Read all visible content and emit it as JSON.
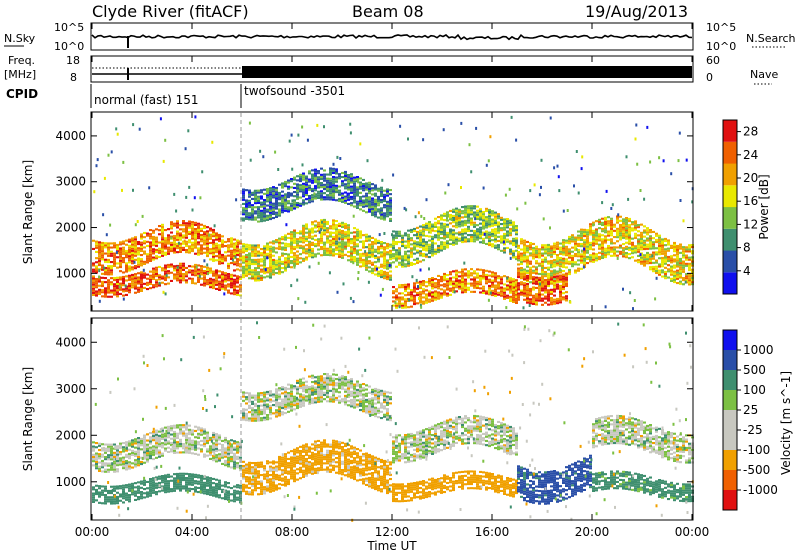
{
  "header": {
    "station": "Clyde River (fitACF)",
    "beam": "Beam 08",
    "date": "19/Aug/2013"
  },
  "noise_panel": {
    "left_label": "N.Sky",
    "right_label": "N.Search",
    "tick_top": "10^5",
    "tick_bottom": "10^0"
  },
  "freq_panel": {
    "left_label_1": "Freq.",
    "left_label_2": "[MHz]",
    "right_label": "Nave",
    "freq_ticks": [
      "18",
      "8"
    ],
    "nave_ticks": [
      "60",
      "0"
    ]
  },
  "cpid": {
    "label": "CPID",
    "segments": [
      {
        "name": "normal (fast) 151",
        "start_hour": 0,
        "end_hour": 6
      },
      {
        "name": "twofsound -3501",
        "start_hour": 6,
        "end_hour": 24
      }
    ]
  },
  "x_axis": {
    "ticks": [
      "00:00",
      "04:00",
      "08:00",
      "12:00",
      "16:00",
      "20:00",
      "00:00"
    ],
    "label": "Time UT"
  },
  "colors": {
    "power": [
      "#1010ee",
      "#2a4fa8",
      "#3f8f6f",
      "#7cc043",
      "#e8e800",
      "#f0a000",
      "#f06000",
      "#e01010"
    ],
    "velocity": [
      "#e01010",
      "#f06000",
      "#f0a000",
      "#c8c8c0",
      "#c8c8c0",
      "#7cc043",
      "#3f8f6f",
      "#2a4fa8",
      "#1010ee"
    ]
  },
  "chart_data": [
    {
      "type": "heatmap",
      "quantity": "power",
      "ylabel": "Slant Range [km]",
      "y_ticks": [
        "1000",
        "2000",
        "3000",
        "4000"
      ],
      "ylim": [
        200,
        4500
      ],
      "xlim_hours": [
        0,
        24
      ],
      "colorbar_label": "Power [dB]",
      "colorbar_ticks": [
        "4",
        "8",
        "12",
        "16",
        "20",
        "24",
        "28"
      ],
      "colorbar_range": [
        0,
        30
      ],
      "bands": [
        {
          "start_hour": 0,
          "end_hour": 6,
          "center_km": 1550,
          "width_km": 700,
          "level_db": 22
        },
        {
          "start_hour": 0,
          "end_hour": 6,
          "center_km": 850,
          "width_km": 450,
          "level_db": 24
        },
        {
          "start_hour": 6,
          "end_hour": 12,
          "center_km": 1500,
          "width_km": 800,
          "level_db": 17
        },
        {
          "start_hour": 6,
          "end_hour": 12,
          "center_km": 2700,
          "width_km": 700,
          "level_db": 8
        },
        {
          "start_hour": 12,
          "end_hour": 17,
          "center_km": 1800,
          "width_km": 800,
          "level_db": 14
        },
        {
          "start_hour": 12,
          "end_hour": 17,
          "center_km": 650,
          "width_km": 500,
          "level_db": 22
        },
        {
          "start_hour": 17,
          "end_hour": 24,
          "center_km": 1500,
          "width_km": 900,
          "level_db": 18
        },
        {
          "start_hour": 17,
          "end_hour": 19,
          "center_km": 800,
          "width_km": 600,
          "level_db": 24
        }
      ]
    },
    {
      "type": "heatmap",
      "quantity": "velocity",
      "ylabel": "Slant Range [km]",
      "y_ticks": [
        "1000",
        "2000",
        "3000",
        "4000"
      ],
      "ylim": [
        200,
        4500
      ],
      "xlim_hours": [
        0,
        24
      ],
      "colorbar_label": "Velocity [m s^-1]",
      "colorbar_ticks": [
        "1000",
        "500",
        "100",
        "25",
        "-25",
        "-100",
        "-500",
        "-1000"
      ],
      "bands": [
        {
          "start_hour": 0,
          "end_hour": 6,
          "center_km": 1700,
          "width_km": 600,
          "velocity": 0
        },
        {
          "start_hour": 0,
          "end_hour": 6,
          "center_km": 850,
          "width_km": 400,
          "velocity": 300
        },
        {
          "start_hour": 6,
          "end_hour": 12,
          "center_km": 1300,
          "width_km": 700,
          "velocity": -200
        },
        {
          "start_hour": 6,
          "end_hour": 12,
          "center_km": 2800,
          "width_km": 600,
          "velocity": 0
        },
        {
          "start_hour": 12,
          "end_hour": 17,
          "center_km": 1900,
          "width_km": 600,
          "velocity": 0
        },
        {
          "start_hour": 12,
          "end_hour": 17,
          "center_km": 900,
          "width_km": 400,
          "velocity": -300
        },
        {
          "start_hour": 17,
          "end_hour": 20,
          "center_km": 1100,
          "width_km": 700,
          "velocity": 600
        },
        {
          "start_hour": 20,
          "end_hour": 24,
          "center_km": 1900,
          "width_km": 600,
          "velocity": 0
        },
        {
          "start_hour": 20,
          "end_hour": 24,
          "center_km": 900,
          "width_km": 400,
          "velocity": 200
        }
      ]
    }
  ]
}
